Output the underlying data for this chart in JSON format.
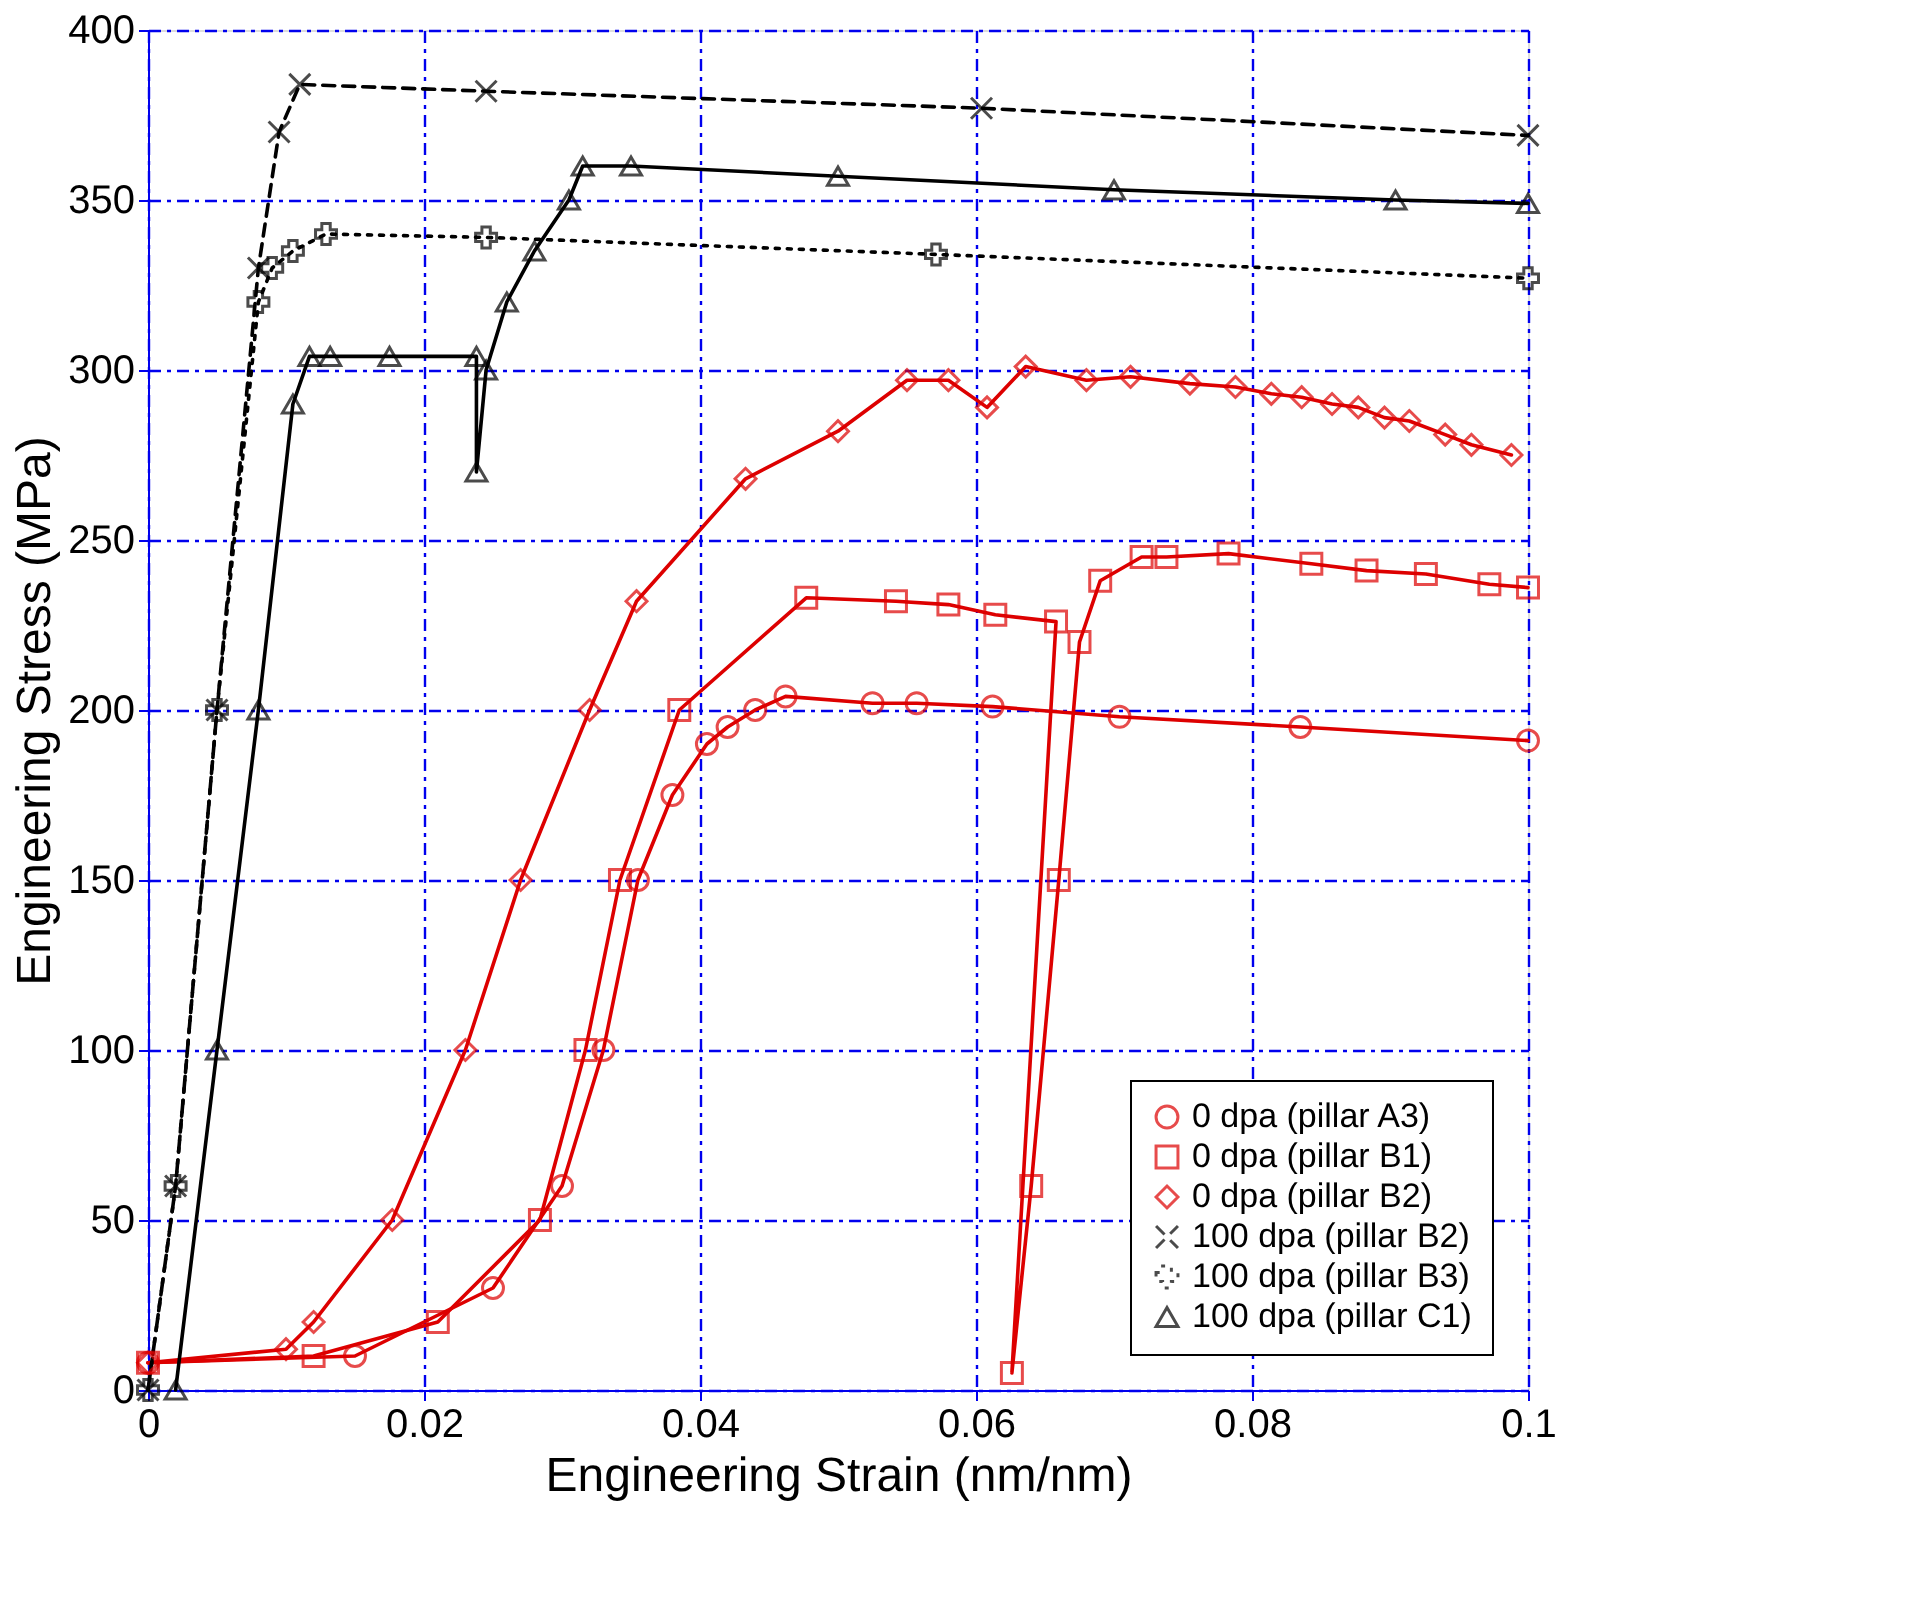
{
  "chart_data": {
    "type": "line",
    "xlabel": "Engineering Strain (nm/nm)",
    "ylabel": "Engineering Stress (MPa)",
    "xlim": [
      0,
      0.1
    ],
    "ylim": [
      0,
      400
    ],
    "xticks": [
      0,
      0.02,
      0.04,
      0.06,
      0.08,
      0.1
    ],
    "yticks": [
      0,
      50,
      100,
      150,
      200,
      250,
      300,
      350,
      400
    ],
    "grid": true,
    "legend": "bottom right",
    "series": [
      {
        "name": "0 dpa (pillar A3)",
        "color": "#dd0000",
        "marker": "circle",
        "line_style": "solid",
        "x": [
          0,
          0.015,
          0.025,
          0.03,
          0.033,
          0.0355,
          0.038,
          0.0405,
          0.042,
          0.044,
          0.0462,
          0.0525,
          0.0557,
          0.0612,
          0.0704,
          0.0835,
          0.1
        ],
        "values": [
          8,
          10,
          30,
          60,
          100,
          150,
          175,
          190,
          195,
          200,
          204,
          202,
          202,
          201,
          198,
          195,
          191
        ]
      },
      {
        "name": "0 dpa (pillar B1)",
        "color": "#dd0000",
        "marker": "square",
        "line_style": "solid",
        "x": [
          0,
          0.012,
          0.021,
          0.0284,
          0.0317,
          0.0342,
          0.0385,
          0.0477,
          0.0542,
          0.058,
          0.0614,
          0.0658,
          0.0626,
          0.064,
          0.066,
          0.0675,
          0.069,
          0.072,
          0.0738,
          0.0783,
          0.0843,
          0.0883,
          0.0926,
          0.0972,
          0.1
        ],
        "values": [
          8,
          10,
          20,
          50,
          100,
          150,
          200,
          233,
          232,
          231,
          228,
          226,
          5,
          60,
          150,
          220,
          238,
          245,
          245,
          246,
          243,
          241,
          240,
          237,
          236
        ]
      },
      {
        "name": "0 dpa (pillar B2)",
        "color": "#dd0000",
        "marker": "diamond",
        "line_style": "solid",
        "x": [
          0,
          0.01,
          0.012,
          0.0177,
          0.023,
          0.027,
          0.032,
          0.0354,
          0.0433,
          0.05,
          0.055,
          0.058,
          0.0608,
          0.0636,
          0.068,
          0.0712,
          0.0755,
          0.0788,
          0.0814,
          0.0836,
          0.0858,
          0.0877,
          0.0896,
          0.0914,
          0.094,
          0.0959,
          0.0988
        ],
        "values": [
          8,
          12,
          20,
          50,
          100,
          150,
          200,
          232,
          268,
          282,
          297,
          297,
          289,
          301,
          297,
          298,
          296,
          295,
          293,
          292,
          290,
          289,
          286,
          285,
          281,
          278,
          275
        ]
      },
      {
        "name": "100 dpa (pillar B2)",
        "color": "#000000",
        "marker": "cross",
        "line_style": "dashed",
        "x": [
          0,
          0.002,
          0.005,
          0.008,
          0.0095,
          0.011,
          0.0245,
          0.0604,
          0.1
        ],
        "values": [
          0,
          60,
          200,
          330,
          370,
          384,
          382,
          377,
          369
        ]
      },
      {
        "name": "100 dpa (pillar B3)",
        "color": "#000000",
        "marker": "plus",
        "line_style": "dotted",
        "x": [
          0,
          0.002,
          0.005,
          0.008,
          0.009,
          0.0105,
          0.0129,
          0.0245,
          0.0571,
          0.1
        ],
        "values": [
          0,
          60,
          200,
          320,
          330,
          335,
          340,
          339,
          334,
          327
        ]
      },
      {
        "name": "100 dpa (pillar C1)",
        "color": "#000000",
        "marker": "triangle",
        "line_style": "solid",
        "x": [
          0.002,
          0.005,
          0.008,
          0.0105,
          0.0117,
          0.0132,
          0.0175,
          0.0238,
          0.0238,
          0.0245,
          0.026,
          0.028,
          0.0305,
          0.0315,
          0.035,
          0.05,
          0.07,
          0.0904,
          0.1
        ],
        "values": [
          0,
          100,
          200,
          290,
          304,
          304,
          304,
          304,
          270,
          300,
          320,
          335,
          350,
          360,
          360,
          357,
          353,
          350,
          349
        ]
      }
    ]
  }
}
